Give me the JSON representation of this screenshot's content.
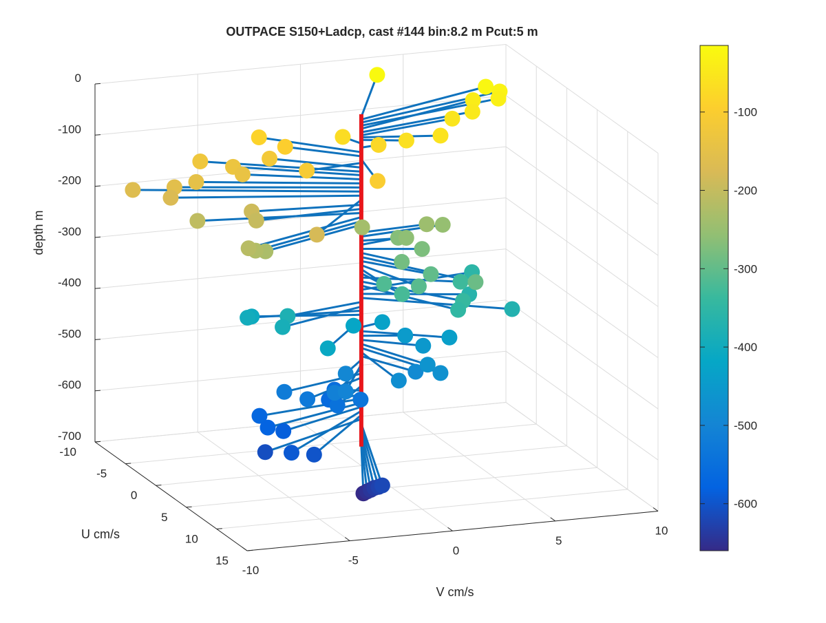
{
  "chart_data": {
    "type": "line",
    "title": "OUTPACE S150+Ladcp, cast #144 bin:8.2 m  Pcut:5 m",
    "xlabel": "V cm/s",
    "ylabel": "U cm/s",
    "zlabel": "depth m",
    "vlim": [
      -10,
      10
    ],
    "ulim": [
      -10,
      15
    ],
    "zlim": [
      -700,
      0
    ],
    "v_ticks": [
      "-10",
      "-5",
      "0",
      "5",
      "10"
    ],
    "u_ticks": [
      "-10",
      "-5",
      "0",
      "5",
      "10",
      "15"
    ],
    "z_ticks": [
      "0",
      "-100",
      "-200",
      "-300",
      "-400",
      "-500",
      "-600",
      "-700"
    ],
    "grid": true,
    "colorbar": {
      "colormap": "parula",
      "range": [
        -660,
        -15
      ],
      "ticks": [
        "-100",
        "-200",
        "-300",
        "-400",
        "-500",
        "-600"
      ],
      "tick_values": [
        -100,
        -200,
        -300,
        -400,
        -500,
        -600
      ]
    },
    "colors": {
      "stem": "#e8161b",
      "vector_line": "#0f72bd"
    },
    "series": [
      {
        "columns": [
          "V",
          "U",
          "depth"
        ],
        "points": [
          [
            3.2,
            -8.2,
            -18
          ],
          [
            7.3,
            -4.2,
            -23
          ],
          [
            7.8,
            -3.6,
            -29
          ],
          [
            7.5,
            -2.8,
            -35
          ],
          [
            6.5,
            -3.6,
            -41
          ],
          [
            6.0,
            -2.0,
            -48
          ],
          [
            4.9,
            -1.6,
            -54
          ],
          [
            3.5,
            1.2,
            -58
          ],
          [
            1.9,
            1.0,
            -63
          ],
          [
            -0.4,
            -1.7,
            -70
          ],
          [
            0.9,
            -0.2,
            -78
          ],
          [
            -3.5,
            -5.0,
            -87
          ],
          [
            -2.7,
            -3.4,
            -95
          ],
          [
            -0.6,
            4.7,
            -101
          ],
          [
            -2.8,
            0.5,
            -108
          ],
          [
            -3.4,
            -3.6,
            -117
          ],
          [
            -6.3,
            -5.2,
            -125
          ],
          [
            -5.0,
            -4.2,
            -132
          ],
          [
            -4.8,
            -3.3,
            -140
          ],
          [
            -7.0,
            -3.5,
            -148
          ],
          [
            -8.0,
            -3.7,
            -156
          ],
          [
            -9.7,
            -4.8,
            -164
          ],
          [
            -8.3,
            -3.3,
            -172
          ],
          [
            -4.0,
            6.2,
            -180
          ],
          [
            -5.1,
            -0.8,
            -190
          ],
          [
            -5.2,
            0.3,
            -198
          ],
          [
            -7.5,
            -1.6,
            -206
          ],
          [
            -6.7,
            4.1,
            -214
          ],
          [
            -6.3,
            3.9,
            -222
          ],
          [
            -5.7,
            3.5,
            -229
          ],
          [
            0.1,
            -0.2,
            -236
          ],
          [
            3.3,
            -0.4,
            -244
          ],
          [
            4.2,
            -0.8,
            -252
          ],
          [
            2.1,
            0.3,
            -260
          ],
          [
            2.0,
            -0.7,
            -268
          ],
          [
            2.6,
            1.2,
            -276
          ],
          [
            1.2,
            2.6,
            -284
          ],
          [
            3.4,
            7.3,
            -292
          ],
          [
            2.2,
            4.0,
            -300
          ],
          [
            1.2,
            5.4,
            -308
          ],
          [
            0.1,
            3.4,
            -316
          ],
          [
            0.5,
            5.0,
            -324
          ],
          [
            4.0,
            2.8,
            -332
          ],
          [
            3.2,
            5.9,
            -340
          ],
          [
            2.7,
            6.8,
            -348
          ],
          [
            5.8,
            -1.4,
            -356
          ],
          [
            4.6,
            2.2,
            -364
          ],
          [
            5.8,
            5.2,
            -372
          ],
          [
            -4.0,
            1.4,
            -380
          ],
          [
            -4.6,
            2.6,
            -389
          ],
          [
            -5.3,
            -0.8,
            -397
          ],
          [
            -4.8,
            -1.8,
            -405
          ],
          [
            -3.2,
            5.3,
            -413
          ],
          [
            -0.5,
            0.4,
            -421
          ],
          [
            1.2,
            -0.6,
            -429
          ],
          [
            3.4,
            3.0,
            -437
          ],
          [
            1.9,
            0.8,
            -446
          ],
          [
            2.3,
            2.4,
            -454
          ],
          [
            1.6,
            5.5,
            -462
          ],
          [
            1.9,
            6.6,
            -470
          ],
          [
            -0.1,
            6.5,
            -478
          ],
          [
            1.4,
            4.2,
            -486
          ],
          [
            -1.5,
            2.5,
            -493
          ],
          [
            -2.3,
            5.2,
            -502
          ],
          [
            -2.6,
            4.4,
            -510
          ],
          [
            -4.4,
            2.2,
            -520
          ],
          [
            -3.6,
            3.3,
            -528
          ],
          [
            -1.1,
            3.6,
            -536
          ],
          [
            -2.2,
            3.5,
            -544
          ],
          [
            -1.1,
            -0.7,
            -553
          ],
          [
            -1.7,
            0.4,
            -561
          ],
          [
            -5.4,
            1.5,
            -569
          ],
          [
            -5.5,
            3.2,
            -577
          ],
          [
            -4.8,
            3.4,
            -585
          ],
          [
            -5.5,
            7.1,
            -593
          ],
          [
            -4.4,
            7.1,
            -601
          ],
          [
            -6.1,
            4.8,
            -609
          ],
          [
            -2.8,
            12.9,
            -618
          ],
          [
            -2.8,
            12.3,
            -626
          ],
          [
            -2.8,
            11.6,
            -634
          ],
          [
            -2.8,
            11.0,
            -643
          ],
          [
            -2.8,
            10.4,
            -651
          ],
          [
            -2.8,
            9.8,
            -660
          ]
        ]
      }
    ]
  }
}
